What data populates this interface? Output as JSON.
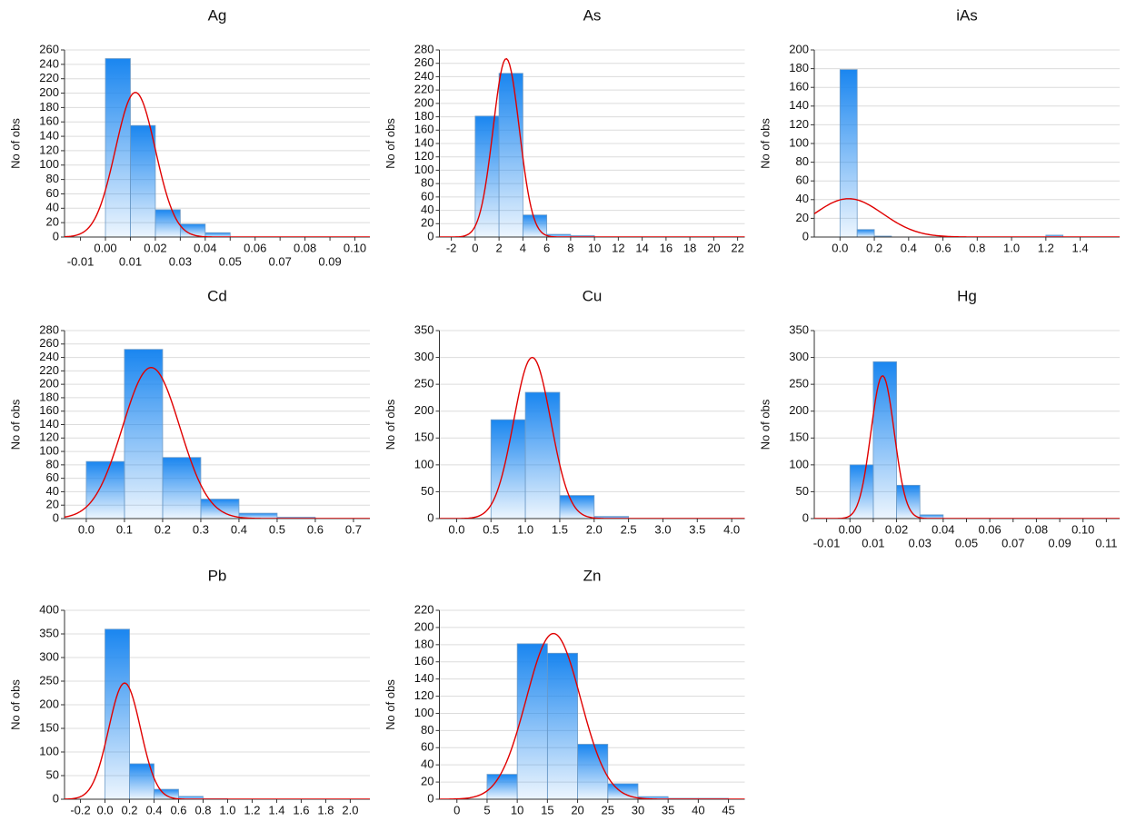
{
  "chart_data": [
    {
      "type": "histogram",
      "title": "Ag",
      "y_label": "No of obs",
      "color": "#1a86f0",
      "fit_color": "#e00000",
      "grid": true,
      "bins": [
        0,
        0.01,
        0.02,
        0.03,
        0.04,
        0.05
      ],
      "counts": [
        248,
        155,
        38,
        18,
        6
      ],
      "normal_fit": {
        "mean": 0.012,
        "sd": 0.008,
        "peak": 201
      },
      "xlim": [
        -0.0164,
        0.106
      ],
      "ylim": [
        0,
        260
      ],
      "xticks": [
        -0.01,
        {
          "value": 0,
          "label": "0.00"
        },
        0.01,
        0.02,
        0.03,
        0.04,
        0.05,
        0.06,
        0.07,
        0.08,
        0.09,
        {
          "value": 0.1,
          "label": "0.10"
        }
      ],
      "yticks": [
        0,
        20,
        40,
        60,
        80,
        100,
        120,
        140,
        160,
        180,
        200,
        220,
        240,
        260
      ]
    },
    {
      "type": "histogram",
      "title": "As",
      "y_label": "No of obs",
      "color": "#1a86f0",
      "fit_color": "#e00000",
      "grid": true,
      "bins": [
        0,
        2,
        4,
        6,
        8,
        10
      ],
      "counts": [
        181,
        245,
        33,
        4,
        2
      ],
      "normal_fit": {
        "mean": 2.6,
        "sd": 1.1,
        "peak": 267
      },
      "xlim": [
        -3,
        22.6
      ],
      "ylim": [
        0,
        280
      ],
      "xticks": [
        -2,
        0,
        2,
        4,
        6,
        8,
        10,
        12,
        14,
        16,
        18,
        20,
        22
      ],
      "yticks": [
        0,
        20,
        40,
        60,
        80,
        100,
        120,
        140,
        160,
        180,
        200,
        220,
        240,
        260,
        280
      ]
    },
    {
      "type": "histogram",
      "title": "iAs",
      "y_label": "No of obs",
      "color": "#1a86f0",
      "fit_color": "#e00000",
      "grid": true,
      "bins": [
        0,
        0.1,
        0.2,
        0.3,
        0.4,
        0.5,
        0.6,
        0.7,
        0.8,
        0.9,
        1.0,
        1.1,
        1.2,
        1.3
      ],
      "counts": [
        179,
        8,
        1,
        0,
        0,
        0,
        0,
        0,
        0,
        0,
        0,
        0,
        2
      ],
      "normal_fit": {
        "mean": 0.05,
        "sd": 0.2,
        "peak": 41
      },
      "xlim": [
        -0.15,
        1.63
      ],
      "ylim": [
        0,
        200
      ],
      "xticks": [
        {
          "value": 0,
          "label": "0.0"
        },
        0.2,
        0.4,
        0.6,
        0.8,
        {
          "value": 1,
          "label": "1.0"
        },
        1.2,
        1.4
      ],
      "yticks": [
        0,
        20,
        40,
        60,
        80,
        100,
        120,
        140,
        160,
        180,
        200
      ]
    },
    {
      "type": "histogram",
      "title": "Cd",
      "y_label": "No of obs",
      "color": "#1a86f0",
      "fit_color": "#e00000",
      "grid": true,
      "bins": [
        0,
        0.1,
        0.2,
        0.3,
        0.4,
        0.5,
        0.6
      ],
      "counts": [
        85,
        252,
        91,
        29,
        8,
        2
      ],
      "normal_fit": {
        "mean": 0.17,
        "sd": 0.075,
        "peak": 225
      },
      "xlim": [
        -0.057,
        0.743
      ],
      "ylim": [
        0,
        280
      ],
      "xticks": [
        {
          "value": 0,
          "label": "0.0"
        },
        0.1,
        0.2,
        0.3,
        0.4,
        0.5,
        0.6,
        0.7
      ],
      "yticks": [
        0,
        20,
        40,
        60,
        80,
        100,
        120,
        140,
        160,
        180,
        200,
        220,
        240,
        260,
        280
      ]
    },
    {
      "type": "histogram",
      "title": "Cu",
      "y_label": "No of obs",
      "color": "#1a86f0",
      "fit_color": "#e00000",
      "grid": true,
      "bins": [
        0.5,
        1,
        1.5,
        2,
        2.5
      ],
      "counts": [
        184,
        235,
        43,
        4
      ],
      "normal_fit": {
        "mean": 1.1,
        "sd": 0.27,
        "peak": 300
      },
      "xlim": [
        -0.25,
        4.19
      ],
      "ylim": [
        0,
        350
      ],
      "xticks": [
        {
          "value": 0,
          "label": "0.0"
        },
        0.5,
        {
          "value": 1,
          "label": "1.0"
        },
        1.5,
        {
          "value": 2,
          "label": "2.0"
        },
        2.5,
        {
          "value": 3,
          "label": "3.0"
        },
        3.5,
        {
          "value": 4,
          "label": "4.0"
        }
      ],
      "yticks": [
        0,
        50,
        100,
        150,
        200,
        250,
        300,
        350
      ]
    },
    {
      "type": "histogram",
      "title": "Hg",
      "y_label": "No of obs",
      "color": "#1a86f0",
      "fit_color": "#e00000",
      "grid": true,
      "bins": [
        0,
        0.01,
        0.02,
        0.03,
        0.04
      ],
      "counts": [
        100,
        292,
        62,
        7
      ],
      "normal_fit": {
        "mean": 0.014,
        "sd": 0.005,
        "peak": 266
      },
      "xlim": [
        -0.0153,
        0.1157
      ],
      "ylim": [
        0,
        350
      ],
      "xticks": [
        -0.01,
        {
          "value": 0,
          "label": "0.00"
        },
        0.01,
        0.02,
        0.03,
        0.04,
        0.05,
        0.06,
        0.07,
        0.08,
        0.09,
        {
          "value": 0.1,
          "label": "0.10"
        },
        0.11
      ],
      "yticks": [
        0,
        50,
        100,
        150,
        200,
        250,
        300,
        350
      ]
    },
    {
      "type": "histogram",
      "title": "Pb",
      "y_label": "No of obs",
      "color": "#1a86f0",
      "fit_color": "#e00000",
      "grid": true,
      "bins": [
        0,
        0.2,
        0.4,
        0.6,
        0.8,
        1.0
      ],
      "counts": [
        360,
        75,
        21,
        6,
        1
      ],
      "normal_fit": {
        "mean": 0.16,
        "sd": 0.13,
        "peak": 246
      },
      "xlim": [
        -0.33,
        2.16
      ],
      "ylim": [
        0,
        400
      ],
      "xticks": [
        -0.2,
        {
          "value": 0,
          "label": "0.0"
        },
        0.2,
        0.4,
        0.6,
        0.8,
        {
          "value": 1,
          "label": "1.0"
        },
        1.2,
        1.4,
        1.6,
        1.8,
        {
          "value": 2,
          "label": "2.0"
        }
      ],
      "yticks": [
        0,
        50,
        100,
        150,
        200,
        250,
        300,
        350,
        400
      ]
    },
    {
      "type": "histogram",
      "title": "Zn",
      "y_label": "No of obs",
      "color": "#1a86f0",
      "fit_color": "#e00000",
      "grid": true,
      "bins": [
        5,
        10,
        15,
        20,
        25,
        30,
        35,
        40,
        45
      ],
      "counts": [
        29,
        181,
        170,
        64,
        18,
        3,
        1,
        1
      ],
      "normal_fit": {
        "mean": 16,
        "sd": 4.5,
        "peak": 193
      },
      "xlim": [
        -2.9,
        47.7
      ],
      "ylim": [
        0,
        220
      ],
      "xticks": [
        0,
        5,
        10,
        15,
        20,
        25,
        30,
        35,
        40,
        45
      ],
      "yticks": [
        0,
        20,
        40,
        60,
        80,
        100,
        120,
        140,
        160,
        180,
        200,
        220
      ]
    }
  ]
}
